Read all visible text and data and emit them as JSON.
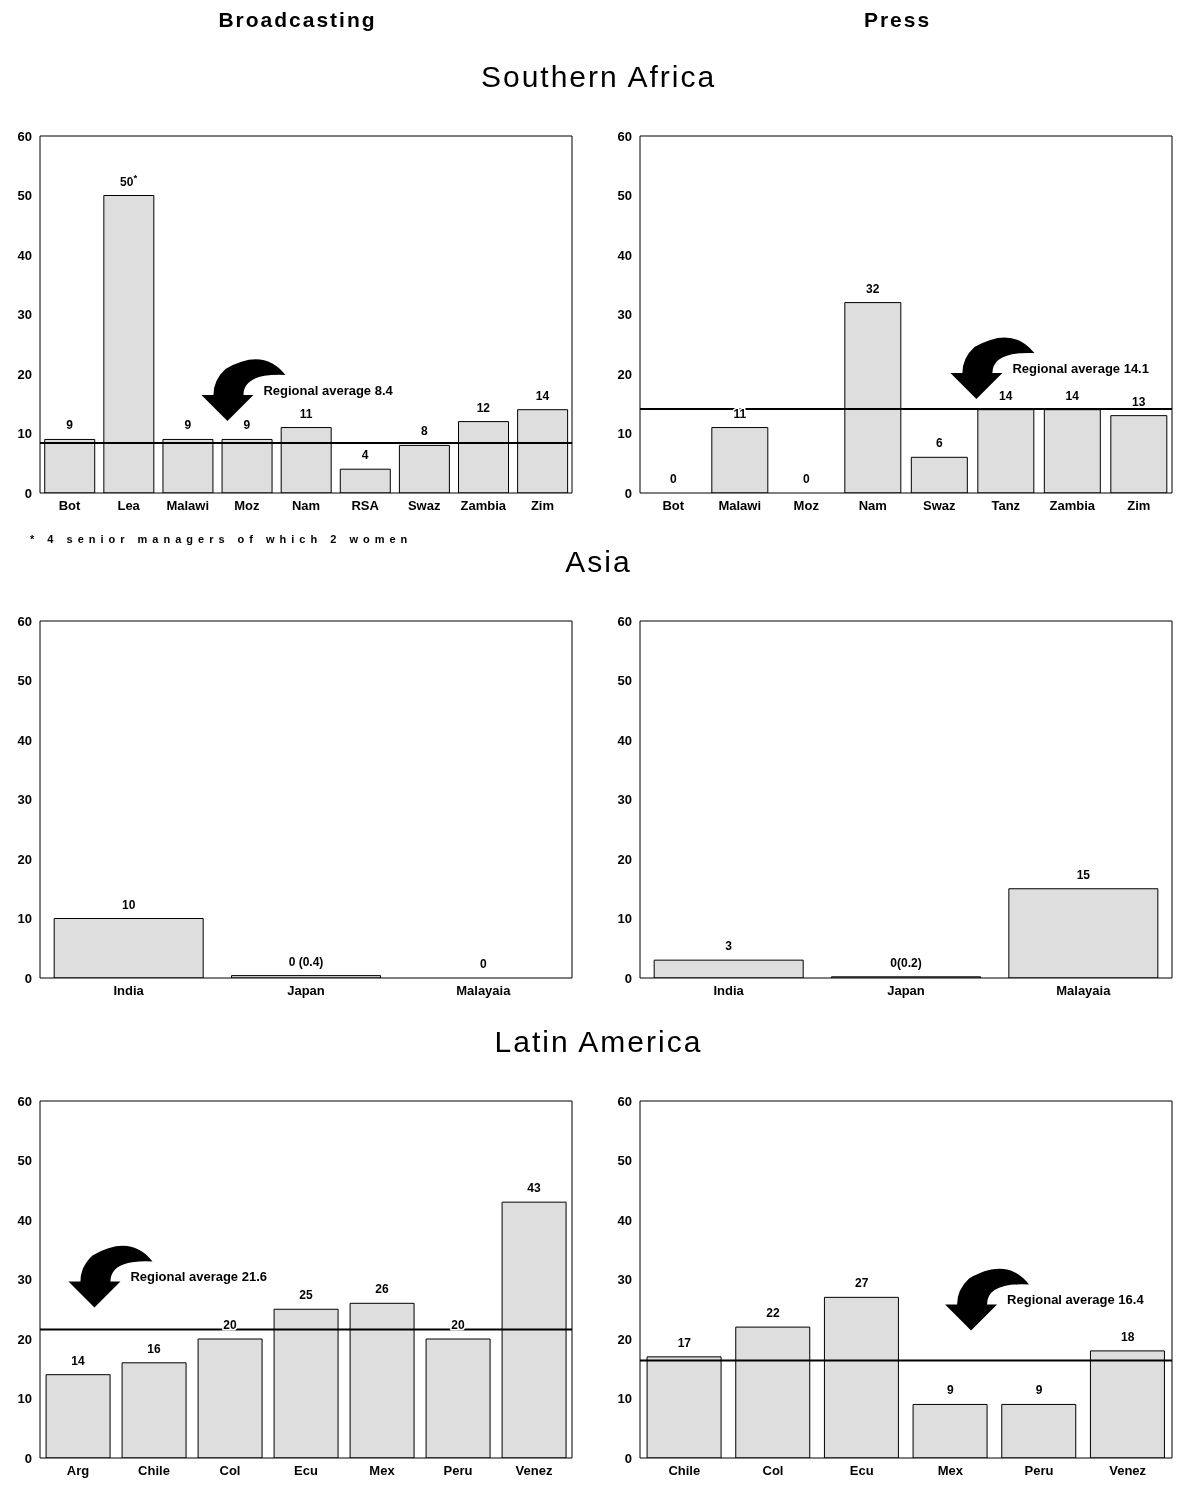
{
  "chart_data": [
    {
      "type": "bar",
      "title": "Broadcasting",
      "subtitle": "Southern Africa",
      "categories": [
        "Bot",
        "Lea",
        "Malawi",
        "Moz",
        "Nam",
        "RSA",
        "Swaz",
        "Zambia",
        "Zim"
      ],
      "values": [
        9,
        50,
        9,
        9,
        11,
        4,
        8,
        12,
        14
      ],
      "value_labels": [
        "9",
        "50$^{*}$",
        "9",
        "9",
        "11",
        "4",
        "8",
        "12",
        "14"
      ],
      "color": "#dedede",
      "ylim": [
        0,
        60
      ],
      "yticks": [
        0,
        10,
        20,
        30,
        40,
        50,
        60
      ],
      "ref_lines": [
        {
          "axis": "y",
          "value": 8.4,
          "label": "Regional average 8.4"
        }
      ],
      "annotations": [
        "* 4 senior managers of which 2 women"
      ]
    },
    {
      "type": "bar",
      "title": "Press",
      "categories": [
        "Bot",
        "Malawi",
        "Moz",
        "Nam",
        "Swaz",
        "Tanz",
        "Zambia",
        "Zim"
      ],
      "values": [
        0,
        11,
        0,
        32,
        6,
        14,
        14,
        13
      ],
      "value_labels": [
        "0",
        "11",
        "0",
        "32",
        "6",
        "14",
        "14",
        "13"
      ],
      "color": "#dedede",
      "ylim": [
        0,
        60
      ],
      "yticks": [
        0,
        10,
        20,
        30,
        40,
        50,
        60
      ],
      "ref_lines": [
        {
          "axis": "y",
          "value": 14.1,
          "label": "Regional average 14.1"
        }
      ]
    },
    {
      "type": "bar",
      "subtitle": "Asia",
      "categories": [
        "India",
        "Japan",
        "Malayaia"
      ],
      "values": [
        10,
        0.4,
        0
      ],
      "value_labels": [
        "10",
        "0 (0.4)",
        "0"
      ],
      "color": "#dedede",
      "ylim": [
        0,
        60
      ],
      "yticks": [
        0,
        10,
        20,
        30,
        40,
        50,
        60
      ]
    },
    {
      "type": "bar",
      "categories": [
        "India",
        "Japan",
        "Malayaia"
      ],
      "values": [
        3,
        0.2,
        15
      ],
      "value_labels": [
        "3",
        "0(0.2)",
        "15"
      ],
      "color": "#dedede",
      "ylim": [
        0,
        60
      ],
      "yticks": [
        0,
        10,
        20,
        30,
        40,
        50,
        60
      ]
    },
    {
      "type": "bar",
      "subtitle": "Latin America",
      "categories": [
        "Arg",
        "Chile",
        "Col",
        "Ecu",
        "Mex",
        "Peru",
        "Venez"
      ],
      "values": [
        14,
        16,
        20,
        25,
        26,
        20,
        43
      ],
      "value_labels": [
        "14",
        "16",
        "20",
        "25",
        "26",
        "20",
        "43"
      ],
      "color": "#dedede",
      "ylim": [
        0,
        60
      ],
      "yticks": [
        0,
        10,
        20,
        30,
        40,
        50,
        60
      ],
      "ref_lines": [
        {
          "axis": "y",
          "value": 21.6,
          "label": "Regional average 21.6"
        }
      ]
    },
    {
      "type": "bar",
      "categories": [
        "Chile",
        "Col",
        "Ecu",
        "Mex",
        "Peru",
        "Venez"
      ],
      "values": [
        17,
        22,
        27,
        9,
        9,
        18
      ],
      "value_labels": [
        "17",
        "22",
        "27",
        "9",
        "9",
        "18"
      ],
      "color": "#dedede",
      "ylim": [
        0,
        60
      ],
      "yticks": [
        0,
        10,
        20,
        30,
        40,
        50,
        60
      ],
      "ref_lines": [
        {
          "axis": "y",
          "value": 16.4,
          "label": "Regional average 16.4"
        }
      ]
    }
  ]
}
